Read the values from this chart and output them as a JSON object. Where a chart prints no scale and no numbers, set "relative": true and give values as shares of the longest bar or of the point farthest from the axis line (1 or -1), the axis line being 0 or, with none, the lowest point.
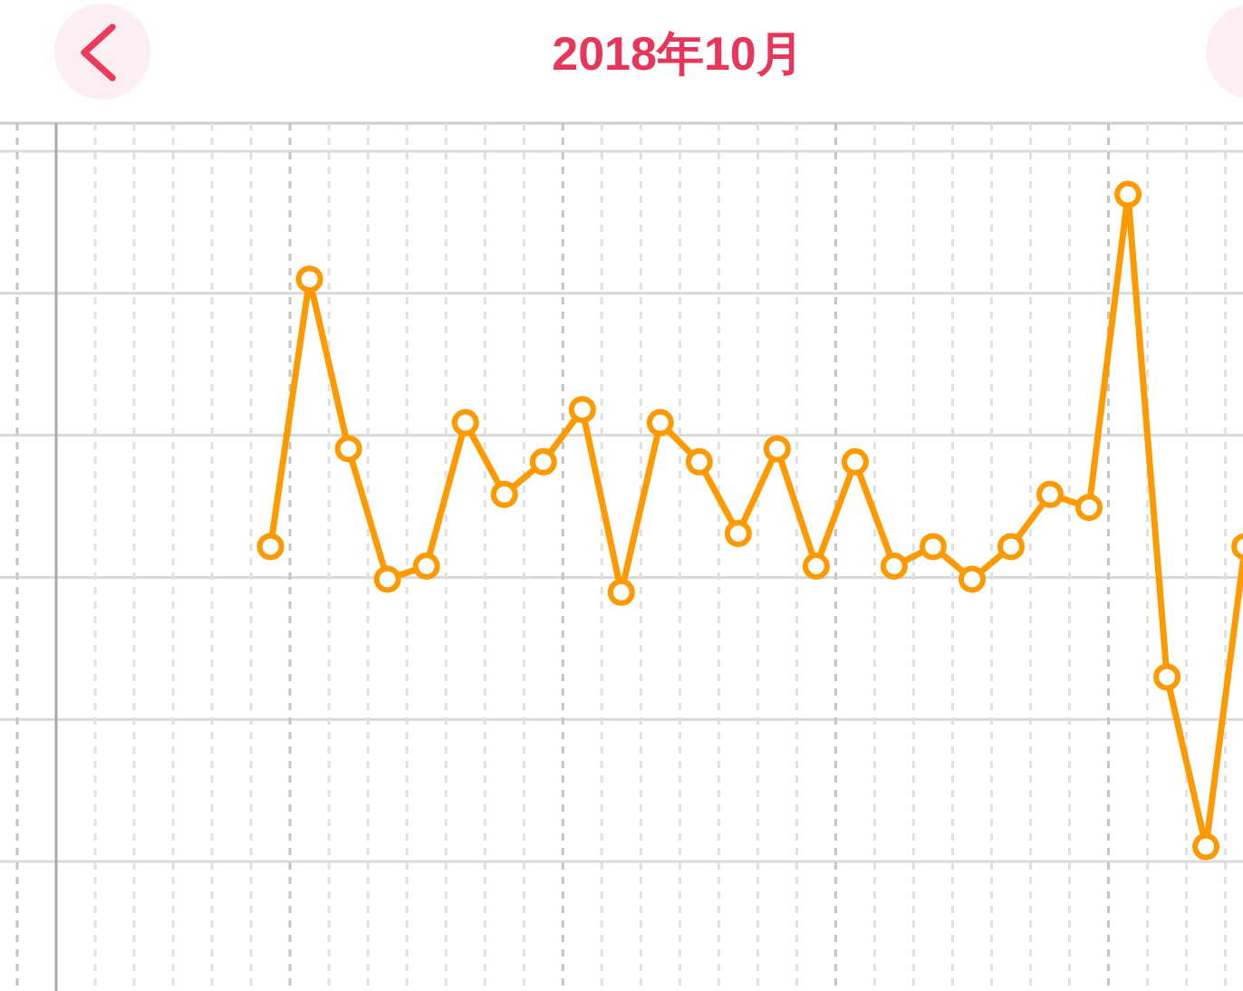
{
  "chart_data": {
    "type": "line",
    "title": "2018年10月",
    "relative": true,
    "grid": true,
    "marker": "circle",
    "categories": [
      null,
      null,
      null,
      null,
      null,
      null,
      null,
      null,
      null,
      null,
      null,
      null,
      null,
      null,
      null,
      null,
      null,
      null,
      null,
      null,
      null,
      null,
      null,
      null,
      null,
      null,
      null,
      null,
      null,
      null,
      null
    ],
    "series": [
      {
        "color": "#ff9900",
        "values": [
          null,
          null,
          null,
          null,
          null,
          0.46,
          0.87,
          0.61,
          0.41,
          0.43,
          0.65,
          0.54,
          0.59,
          0.67,
          0.39,
          0.65,
          0.59,
          0.48,
          0.61,
          0.43,
          0.59,
          0.43,
          0.46,
          0.41,
          0.46,
          0.54,
          0.52,
          1,
          0.26,
          0,
          0.46
        ]
      }
    ]
  }
}
